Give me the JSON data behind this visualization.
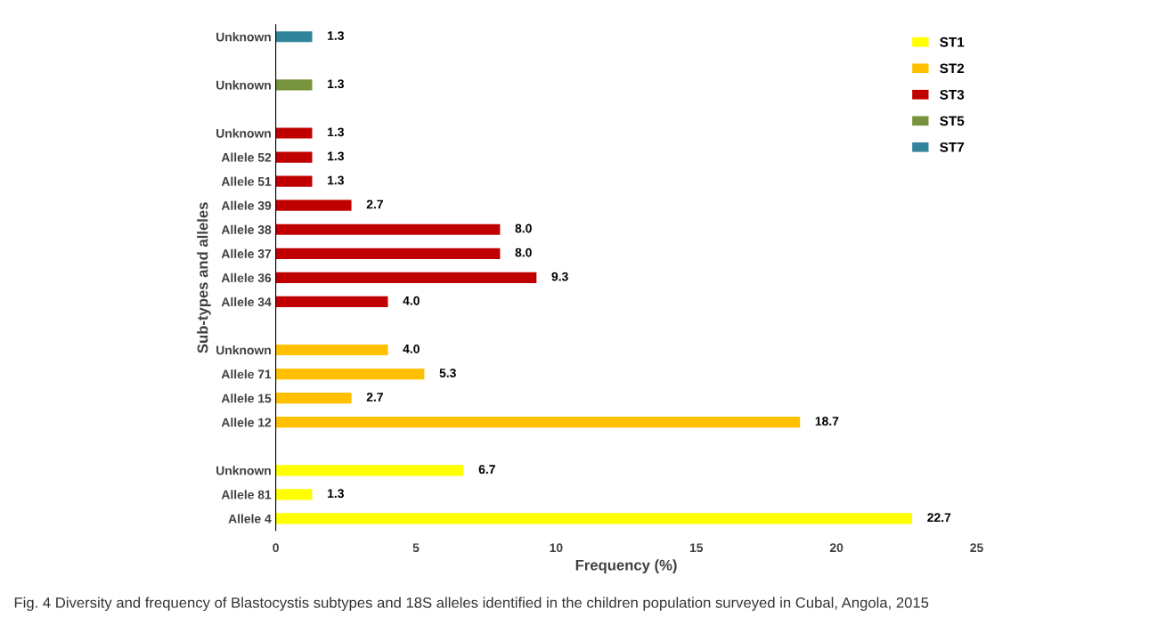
{
  "chart_data": {
    "type": "bar",
    "orientation": "horizontal",
    "ylabel": "Sub-types and alleles",
    "xlabel": "Frequency (%)",
    "categories": [
      "Unknown",
      null,
      "Unknown",
      null,
      "Unknown",
      "Allele 52",
      "Allele 51",
      "Allele 39",
      "Allele 38",
      "Allele 37",
      "Allele 36",
      "Allele 34",
      null,
      "Unknown",
      "Allele 71",
      "Allele 15",
      "Allele 12",
      null,
      "Unknown",
      "Allele 81",
      "Allele 4"
    ],
    "series": [
      {
        "name": "ST1",
        "color": "#ffff00",
        "values": [
          null,
          null,
          null,
          null,
          null,
          null,
          null,
          null,
          null,
          null,
          null,
          null,
          null,
          null,
          null,
          null,
          null,
          null,
          6.7,
          1.3,
          22.7
        ],
        "value_labels": [
          null,
          null,
          null,
          null,
          null,
          null,
          null,
          null,
          null,
          null,
          null,
          null,
          null,
          null,
          null,
          null,
          null,
          null,
          "6.7",
          "1.3",
          "22.7"
        ]
      },
      {
        "name": "ST2",
        "color": "#ffc000",
        "values": [
          null,
          null,
          null,
          null,
          null,
          null,
          null,
          null,
          null,
          null,
          null,
          null,
          null,
          4,
          5.3,
          2.7,
          18.7,
          null,
          null,
          null,
          null
        ],
        "value_labels": [
          null,
          null,
          null,
          null,
          null,
          null,
          null,
          null,
          null,
          null,
          null,
          null,
          null,
          "4.0",
          "5.3",
          "2.7",
          "18.7",
          null,
          null,
          null,
          null
        ]
      },
      {
        "name": "ST3",
        "color": "#c00000",
        "values": [
          null,
          null,
          null,
          null,
          1.3,
          1.3,
          1.3,
          2.7,
          8,
          8,
          9.3,
          4,
          null,
          null,
          null,
          null,
          null,
          null,
          null,
          null,
          null
        ],
        "value_labels": [
          null,
          null,
          null,
          null,
          "1.3",
          "1.3",
          "1.3",
          "2.7",
          "8.0",
          "8.0",
          "9.3",
          "4.0",
          null,
          null,
          null,
          null,
          null,
          null,
          null,
          null,
          null
        ]
      },
      {
        "name": "ST5",
        "color": "#77933c",
        "values": [
          null,
          null,
          1.3,
          null,
          null,
          null,
          null,
          null,
          null,
          null,
          null,
          null,
          null,
          null,
          null,
          null,
          null,
          null,
          null,
          null,
          null
        ],
        "value_labels": [
          null,
          null,
          "1.3",
          null,
          null,
          null,
          null,
          null,
          null,
          null,
          null,
          null,
          null,
          null,
          null,
          null,
          null,
          null,
          null,
          null,
          null
        ]
      },
      {
        "name": "ST7",
        "color": "#31849b",
        "values": [
          1.3,
          null,
          null,
          null,
          null,
          null,
          null,
          null,
          null,
          null,
          null,
          null,
          null,
          null,
          null,
          null,
          null,
          null,
          null,
          null,
          null
        ],
        "value_labels": [
          "1.3",
          null,
          null,
          null,
          null,
          null,
          null,
          null,
          null,
          null,
          null,
          null,
          null,
          null,
          null,
          null,
          null,
          null,
          null,
          null,
          null
        ]
      }
    ],
    "xlim": [
      0,
      25
    ],
    "xticks": [
      0,
      5,
      10,
      15,
      20,
      25
    ],
    "grid": false,
    "legend": "top right",
    "annotations": [
      "Fig. 4 Diversity and frequency of Blastocystis subtypes and 18S alleles identified in the children population surveyed in Cubal, Angola, 2015"
    ]
  }
}
